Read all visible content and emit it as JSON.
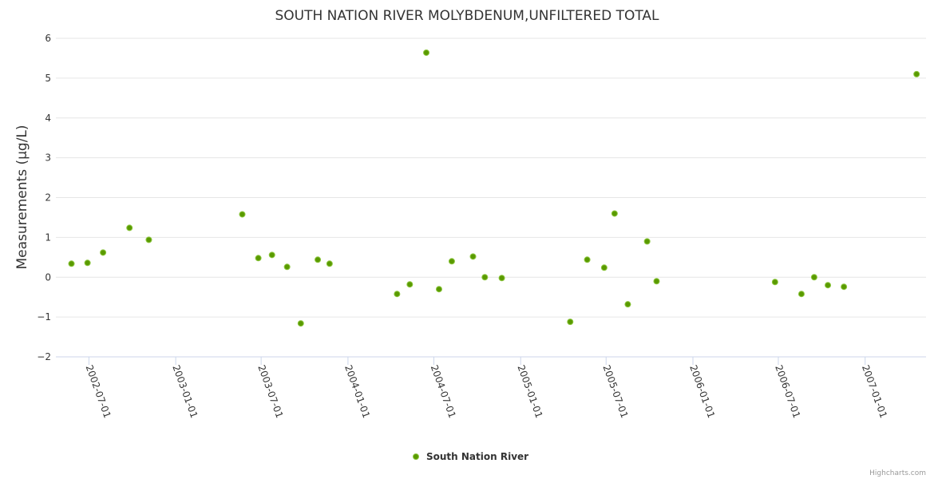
{
  "chart_data": {
    "type": "scatter",
    "title": "SOUTH NATION RIVER MOLYBDENUM,UNFILTERED TOTAL",
    "xlabel": "",
    "ylabel": "Measurements (µg/L)",
    "ylim": [
      -2,
      6
    ],
    "yticks": [
      -2,
      -1,
      0,
      1,
      2,
      3,
      4,
      5,
      6
    ],
    "ytick_labels": [
      "−2",
      "−1",
      "0",
      "1",
      "2",
      "3",
      "4",
      "5",
      "6"
    ],
    "xticks": [
      "2002-07-01",
      "2003-01-01",
      "2003-07-01",
      "2004-01-01",
      "2004-07-01",
      "2005-01-01",
      "2005-07-01",
      "2006-01-01",
      "2006-07-01",
      "2007-01-01"
    ],
    "xlim": [
      "2002-04-22",
      "2007-05-10"
    ],
    "grid": true,
    "legend_position": "bottom-center",
    "series": [
      {
        "name": "South Nation River",
        "color": "#5a9a00",
        "points": [
          [
            "2002-05-25",
            0.34
          ],
          [
            "2002-06-28",
            0.36
          ],
          [
            "2002-07-31",
            0.62
          ],
          [
            "2002-09-25",
            1.24
          ],
          [
            "2002-11-05",
            0.94
          ],
          [
            "2003-05-22",
            1.58
          ],
          [
            "2003-06-25",
            0.48
          ],
          [
            "2003-07-24",
            0.56
          ],
          [
            "2003-08-25",
            0.26
          ],
          [
            "2003-09-23",
            -1.16
          ],
          [
            "2003-10-29",
            0.44
          ],
          [
            "2003-11-23",
            0.34
          ],
          [
            "2004-04-14",
            -0.42
          ],
          [
            "2004-05-11",
            -0.18
          ],
          [
            "2004-06-15",
            5.64
          ],
          [
            "2004-07-12",
            -0.3
          ],
          [
            "2004-08-08",
            0.4
          ],
          [
            "2004-09-22",
            0.52
          ],
          [
            "2004-10-17",
            0.0
          ],
          [
            "2004-11-22",
            -0.02
          ],
          [
            "2005-04-16",
            -1.12
          ],
          [
            "2005-05-22",
            0.44
          ],
          [
            "2005-06-27",
            0.24
          ],
          [
            "2005-07-19",
            1.6
          ],
          [
            "2005-08-16",
            -0.68
          ],
          [
            "2005-09-26",
            0.9
          ],
          [
            "2005-10-16",
            -0.1
          ],
          [
            "2006-06-24",
            -0.12
          ],
          [
            "2006-08-19",
            -0.42
          ],
          [
            "2006-09-15",
            0.0
          ],
          [
            "2006-10-14",
            -0.2
          ],
          [
            "2006-11-17",
            -0.24
          ],
          [
            "2007-04-20",
            5.1
          ]
        ]
      }
    ]
  },
  "credits": "Highcharts.com"
}
